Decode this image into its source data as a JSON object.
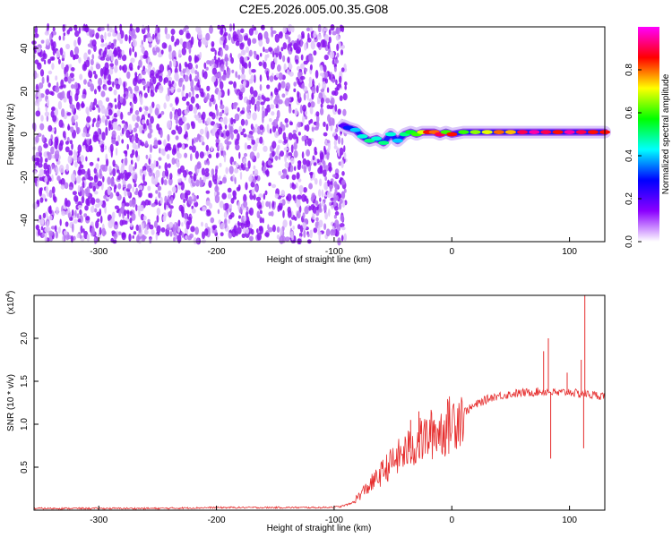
{
  "figure": {
    "title": "C2E5.2026.005.00.35.G08"
  },
  "chart_data": [
    {
      "type": "heatmap",
      "xlabel": "Height of straight line (km)",
      "ylabel": "Frequency (Hz)",
      "xlim": [
        -355,
        130
      ],
      "ylim": [
        -50,
        50
      ],
      "xticks": [
        -300,
        -200,
        -100,
        0,
        100
      ],
      "yticks": [
        -40,
        -20,
        0,
        20,
        40
      ],
      "noise_region": {
        "x": [
          -355,
          -90
        ],
        "y": [
          -50,
          50
        ],
        "amplitude": 0.08
      },
      "signal_track": {
        "x": [
          -92,
          -88,
          -82,
          -76,
          -70,
          -64,
          -58,
          -52,
          -46,
          -40,
          -35,
          -30,
          -25,
          -20,
          -15,
          -10,
          -5,
          0,
          10,
          20,
          30,
          40,
          50,
          60,
          70,
          80,
          90,
          100,
          110,
          120,
          130
        ],
        "freq": [
          4,
          3,
          2,
          -1,
          -3,
          -2,
          -4,
          0,
          -3,
          0,
          1,
          0,
          1,
          1,
          1,
          0,
          1,
          0,
          1,
          1,
          1,
          1,
          1,
          1,
          1,
          1,
          1,
          1,
          1,
          1,
          1
        ],
        "amplitude": [
          0.2,
          0.3,
          0.4,
          0.45,
          0.5,
          0.45,
          0.5,
          0.45,
          0.4,
          0.5,
          0.55,
          0.6,
          0.7,
          0.85,
          0.8,
          0.9,
          0.6,
          0.85,
          0.6,
          0.65,
          0.7,
          0.8,
          0.75,
          0.9,
          0.95,
          0.9,
          0.85,
          0.95,
          0.9,
          0.85,
          0.85
        ]
      },
      "colorbar": {
        "label": "Normalized spectral amplitude",
        "range": [
          0,
          1
        ],
        "ticks": [
          "0.0",
          "0.2",
          "0.4",
          "0.6",
          "0.8"
        ],
        "tick_values": [
          0,
          0.2,
          0.4,
          0.6,
          0.8
        ],
        "colors": [
          "#ffffff",
          "#8b00ff",
          "#0000ff",
          "#00ffff",
          "#00ff00",
          "#ffff00",
          "#ff0000",
          "#ff00ff"
        ]
      }
    },
    {
      "type": "line",
      "xlabel": "Height of straight line (km)",
      "ylabel": "SNR (10 * v/v)",
      "y_scale_label_base": "(x10",
      "y_scale_label_exp": "4",
      "y_scale_label_close": ")",
      "xlim": [
        -355,
        130
      ],
      "ylim": [
        0,
        2.5
      ],
      "xticks": [
        -300,
        -200,
        -100,
        0,
        100
      ],
      "yticks": [
        0.5,
        1.0,
        1.5,
        2.0
      ],
      "ytick_labels": [
        "0.5",
        "1.0",
        "1.5",
        "2.0"
      ],
      "color": "#e62e2e",
      "x": [
        -355,
        -300,
        -250,
        -200,
        -150,
        -110,
        -95,
        -85,
        -75,
        -65,
        -55,
        -45,
        -35,
        -25,
        -15,
        -5,
        5,
        15,
        25,
        35,
        45,
        55,
        65,
        75,
        82,
        90,
        100,
        108,
        112,
        118,
        130
      ],
      "y": [
        0.02,
        0.02,
        0.02,
        0.03,
        0.03,
        0.03,
        0.04,
        0.08,
        0.22,
        0.35,
        0.5,
        0.62,
        0.72,
        0.82,
        0.9,
        0.95,
        1.1,
        1.18,
        1.26,
        1.32,
        1.34,
        1.36,
        1.37,
        1.38,
        1.38,
        1.36,
        1.38,
        1.35,
        1.36,
        1.34,
        1.33
      ],
      "spikes": [
        {
          "x": 113,
          "y": 2.55
        },
        {
          "x": 82,
          "y": 2.0
        },
        {
          "x": 78,
          "y": 1.85
        },
        {
          "x": 110,
          "y": 1.75
        },
        {
          "x": 98,
          "y": 1.6
        },
        {
          "x": 84,
          "y": 0.6
        },
        {
          "x": 112,
          "y": 0.72
        },
        {
          "x": -35,
          "y": 1.05
        },
        {
          "x": -28,
          "y": 1.15
        },
        {
          "x": -15,
          "y": 1.05
        }
      ]
    }
  ]
}
